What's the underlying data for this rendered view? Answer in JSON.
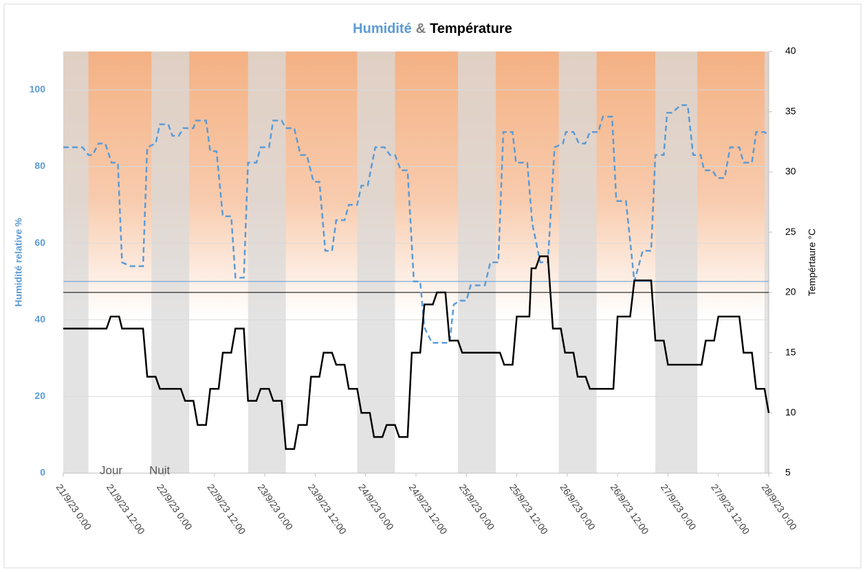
{
  "chart_data": {
    "type": "line",
    "title": {
      "parts": [
        {
          "text": "Humidité",
          "color": "#5B9BD5"
        },
        {
          "text": "&",
          "color": "#7f7f7f"
        },
        {
          "text": "Température",
          "color": "#000000"
        }
      ]
    },
    "ylabel": "Humidité relative %",
    "y2label": "Tempértaure °C",
    "xlim": [
      0,
      168
    ],
    "xticks": [
      {
        "value": 0,
        "label": "21/9/23 0:00"
      },
      {
        "value": 12,
        "label": "21/9/23 12:00"
      },
      {
        "value": 24,
        "label": "22/9/23 0:00"
      },
      {
        "value": 36,
        "label": "22/9/23 12:00"
      },
      {
        "value": 48,
        "label": "23/9/23 0:00"
      },
      {
        "value": 60,
        "label": "23/9/23 12:00"
      },
      {
        "value": 72,
        "label": "24/9/23 0:00"
      },
      {
        "value": 84,
        "label": "24/9/23 12:00"
      },
      {
        "value": 96,
        "label": "25/9/23 0:00"
      },
      {
        "value": 108,
        "label": "25/9/23 12:00"
      },
      {
        "value": 120,
        "label": "26/9/23 0:00"
      },
      {
        "value": 132,
        "label": "26/9/23 12:00"
      },
      {
        "value": 144,
        "label": "27/9/23 0:00"
      },
      {
        "value": 156,
        "label": "27/9/23 12:00"
      },
      {
        "value": 168,
        "label": "28/9/23 0:00"
      }
    ],
    "ylim": [
      0,
      110
    ],
    "yticks": [
      0,
      20,
      40,
      60,
      80,
      100
    ],
    "y2lim": [
      5,
      40
    ],
    "y2ticks": [
      5,
      10,
      15,
      20,
      25,
      30,
      35,
      40
    ],
    "grid": true,
    "legend": [
      {
        "name": "Jour",
        "color": "#ffffff"
      },
      {
        "name": "Nuit",
        "color": "#d9d9d9"
      }
    ],
    "night_bands": [
      [
        0,
        6
      ],
      [
        21,
        30
      ],
      [
        44,
        53
      ],
      [
        70,
        79
      ],
      [
        94,
        103
      ],
      [
        118,
        127
      ],
      [
        141,
        151
      ],
      [
        167,
        168
      ]
    ],
    "reference_lines": [
      {
        "axis": "y",
        "value": 50,
        "color": "#5B9BD5"
      },
      {
        "axis": "y2",
        "value": 20,
        "color": "#000000"
      }
    ],
    "series": [
      {
        "name": "Humidité",
        "color": "#5B9BD5",
        "dashed": true,
        "axis": "y",
        "x": [
          0,
          4.6,
          6,
          7,
          8.4,
          10,
          11.5,
          13,
          14,
          16,
          19,
          20,
          22,
          23,
          25,
          26,
          27.5,
          28.6,
          31,
          31.6,
          34,
          35,
          36.5,
          38,
          40,
          41,
          43,
          44,
          46,
          47,
          49,
          50,
          52,
          53,
          55,
          56.5,
          58,
          59.6,
          61,
          62.4,
          64,
          65,
          67,
          68,
          70,
          71,
          72.5,
          74.3,
          76.5,
          77.8,
          79,
          80.4,
          82,
          83.5,
          85,
          86,
          87.8,
          92,
          93,
          94.5,
          96,
          97,
          100.4,
          101.7,
          103.6,
          104.8,
          107,
          107.8,
          110.5,
          111.7,
          113.6,
          115.4,
          117,
          119,
          119.7,
          121.5,
          122.8,
          124.3,
          125.4,
          127.4,
          128.5,
          130.7,
          131.7,
          134,
          136,
          138,
          140,
          141,
          143,
          143.8,
          145,
          147,
          148.7,
          150,
          151.8,
          152.6,
          154.6,
          155.7,
          157.5,
          158.8,
          161,
          162,
          164,
          165,
          167,
          168
        ],
        "values": [
          85,
          85,
          83,
          83,
          86,
          86,
          81,
          81,
          55,
          54,
          54,
          85,
          86,
          91,
          91,
          88,
          88,
          90,
          90,
          92,
          92,
          84,
          84,
          67,
          67,
          51,
          51,
          81,
          81,
          85,
          85,
          92,
          92,
          90,
          90,
          83,
          83,
          76,
          76,
          58,
          58,
          66,
          66,
          70,
          70,
          75,
          75,
          85,
          85,
          83,
          83,
          79,
          79,
          50,
          50,
          38,
          34,
          34,
          44,
          45,
          45,
          49,
          49,
          55,
          55,
          89,
          89,
          81,
          81,
          65,
          55,
          55,
          85,
          86,
          89,
          89,
          86,
          86,
          89,
          89,
          93,
          93,
          71,
          71,
          50,
          58,
          58,
          83,
          83,
          94,
          94,
          96,
          96,
          83,
          83,
          79,
          79,
          77,
          77,
          85,
          85,
          81,
          81,
          89,
          89,
          88
        ]
      },
      {
        "name": "Température",
        "color": "#000000",
        "dashed": false,
        "axis": "y2",
        "x": [
          0,
          10.3,
          11.3,
          13.3,
          14,
          19,
          20,
          22,
          23,
          28,
          29,
          31,
          32,
          34,
          35,
          37,
          38,
          40,
          41,
          43,
          44,
          46,
          47,
          49,
          50,
          52,
          53,
          55,
          56,
          58,
          59,
          61,
          62,
          64,
          65,
          67,
          68,
          70,
          71,
          73,
          74,
          76,
          77,
          79,
          80,
          82,
          83,
          85,
          86,
          88,
          89,
          91,
          92,
          94,
          95,
          104,
          105,
          107,
          108,
          111,
          111.5,
          112.5,
          113.5,
          115.4,
          116.6,
          118.5,
          119.5,
          121.5,
          122.5,
          124.4,
          125.4,
          131,
          132,
          135,
          136,
          140,
          141,
          143,
          144,
          152,
          153,
          155,
          156,
          161,
          162,
          164,
          165,
          167,
          168
        ],
        "values": [
          17,
          17,
          18,
          18,
          17,
          17,
          13,
          13,
          12,
          12,
          11,
          11,
          9,
          9,
          12,
          12,
          15,
          15,
          17,
          17,
          11,
          11,
          12,
          12,
          11,
          11,
          7,
          7,
          9,
          9,
          13,
          13,
          15,
          15,
          14,
          14,
          12,
          12,
          10,
          10,
          8,
          8,
          9,
          9,
          8,
          8,
          15,
          15,
          19,
          19,
          20,
          20,
          16,
          16,
          15,
          15,
          14,
          14,
          18,
          18,
          22,
          22,
          23,
          23,
          17,
          17,
          15,
          15,
          13,
          13,
          12,
          12,
          18,
          18,
          21,
          21,
          16,
          16,
          14,
          14,
          16,
          16,
          18,
          18,
          15,
          15,
          12,
          12,
          10
        ]
      }
    ]
  }
}
